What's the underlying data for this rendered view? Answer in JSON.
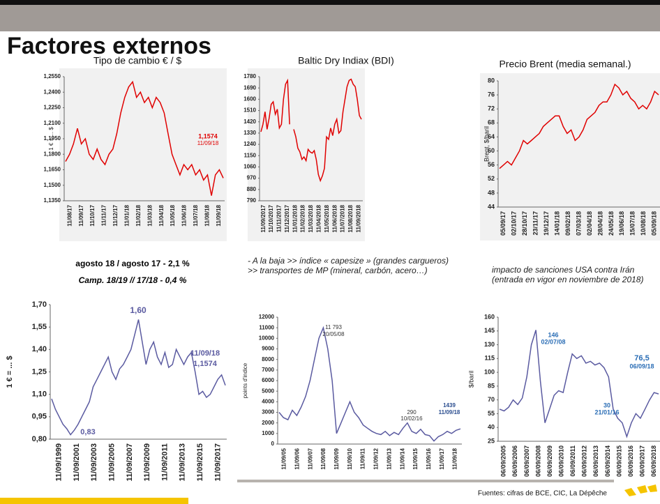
{
  "slide": {
    "title": "Factores externos",
    "note_1a": "agosto 18 / agosto 17  - 2,1 %",
    "note_1b": "Camp. 18/19 // 17/18  - 0,4 %",
    "note_2": "- A la baja >> índice « capesize » (grandes cargueros) >> transportes de MP (mineral, carbón, acero…)",
    "note_3": "impacto de sanciones USA contra Irán (entrada en vigor en noviembre de 2018)",
    "source": "Fuentes: cifras de BCE, CIC, La Dépêche"
  },
  "chart_data": [
    {
      "type": "line",
      "title": "Tipo de cambio € / $",
      "y_label": "1 € = ... $",
      "color": "#e00000",
      "x_labels": [
        "11/08/17",
        "11/09/17",
        "11/10/17",
        "11/11/17",
        "11/12/17",
        "11/01/18",
        "11/02/18",
        "11/03/18",
        "11/04/18",
        "11/05/18",
        "11/06/18",
        "11/07/18",
        "11/08/18",
        "11/09/18"
      ],
      "values": [
        1.173,
        1.18,
        1.19,
        1.205,
        1.19,
        1.195,
        1.18,
        1.175,
        1.185,
        1.175,
        1.17,
        1.18,
        1.185,
        1.2,
        1.22,
        1.235,
        1.245,
        1.25,
        1.235,
        1.24,
        1.23,
        1.235,
        1.225,
        1.235,
        1.23,
        1.22,
        1.2,
        1.18,
        1.17,
        1.16,
        1.17,
        1.165,
        1.17,
        1.16,
        1.165,
        1.155,
        1.16,
        1.14,
        1.16,
        1.165,
        1.157
      ],
      "ylim": [
        1.135,
        1.255
      ],
      "yticks": [
        {
          "value": 1.135,
          "label": "1,1350"
        },
        {
          "value": 1.15,
          "label": "1,1500"
        },
        {
          "value": 1.165,
          "label": "1,1650"
        },
        {
          "value": 1.18,
          "label": "1,1800"
        },
        {
          "value": 1.195,
          "label": "1,1950"
        },
        {
          "value": 1.21,
          "label": "1,2100"
        },
        {
          "value": 1.225,
          "label": "1,2250"
        },
        {
          "value": 1.24,
          "label": "1,2400"
        },
        {
          "value": 1.255,
          "label": "1,2550"
        }
      ],
      "annotations": [
        "1,1574",
        "11/09/18"
      ]
    },
    {
      "type": "line",
      "title": "Baltic Dry Indiax (BDI)",
      "color": "#e00000",
      "x_labels": [
        "11/09/2017",
        "11/10/2017",
        "11/11/2017",
        "11/12/2017",
        "11/01/2018",
        "11/02/2018",
        "11/03/2018",
        "11/04/2018",
        "11/05/2018",
        "11/06/2018",
        "11/07/2018",
        "11/08/2018",
        "11/09/2018"
      ],
      "values": [
        1340,
        1400,
        1500,
        1360,
        1450,
        1560,
        1580,
        1480,
        1520,
        1370,
        1400,
        1600,
        1720,
        1750,
        1400,
        null,
        1360,
        1300,
        1210,
        1180,
        1120,
        1140,
        1110,
        1200,
        1180,
        1170,
        1190,
        1120,
        1000,
        950,
        990,
        1050,
        1300,
        1280,
        1370,
        1310,
        1400,
        1440,
        1330,
        1350,
        1500,
        1600,
        1700,
        1750,
        1760,
        1720,
        1700,
        1600,
        1470,
        1440
      ],
      "ylim": [
        790,
        1780
      ],
      "yticks": [
        790,
        880,
        970,
        1060,
        1150,
        1240,
        1330,
        1420,
        1510,
        1600,
        1690,
        1780
      ],
      "annotations": []
    },
    {
      "type": "line",
      "title": "Precio Brent (media semanal.)",
      "y_label": "Brent, $/baril",
      "color": "#e00000",
      "x_labels": [
        "05/09/17",
        "02/10/17",
        "28/10/17",
        "23/11/17",
        "19/12/17",
        "14/01/18",
        "09/02/18",
        "07/03/18",
        "02/04/18",
        "28/04/18",
        "24/05/18",
        "19/06/18",
        "15/07/18",
        "10/08/18",
        "05/09/18"
      ],
      "values": [
        55,
        56,
        57,
        56,
        58,
        60,
        63,
        62,
        63,
        64,
        65,
        67,
        68,
        69,
        70,
        70,
        67,
        65,
        66,
        63,
        64,
        66,
        69,
        70,
        71,
        73,
        74,
        74,
        76,
        79,
        78,
        76,
        77,
        75,
        74,
        72,
        73,
        72,
        74,
        77,
        76
      ],
      "ylim": [
        44,
        80
      ],
      "yticks": [
        44,
        48,
        52,
        56,
        60,
        64,
        68,
        72,
        76,
        80
      ],
      "annotations": []
    },
    {
      "type": "line",
      "y_label": "1 € = ... $",
      "color": "#5a5aa0",
      "x_labels": [
        "11/09/1999",
        "11/09/2001",
        "11/09/2003",
        "11/09/2005",
        "11/09/2007",
        "11/09/2009",
        "11/09/2011",
        "11/09/2013",
        "11/09/2015",
        "11/09/2017"
      ],
      "values": [
        1.07,
        1.0,
        0.95,
        0.9,
        0.87,
        0.83,
        0.86,
        0.9,
        0.95,
        1.0,
        1.05,
        1.15,
        1.2,
        1.25,
        1.3,
        1.35,
        1.25,
        1.2,
        1.27,
        1.3,
        1.35,
        1.4,
        1.5,
        1.6,
        1.45,
        1.3,
        1.4,
        1.45,
        1.35,
        1.3,
        1.38,
        1.28,
        1.3,
        1.4,
        1.35,
        1.3,
        1.35,
        1.38,
        1.25,
        1.1,
        1.12,
        1.08,
        1.1,
        1.15,
        1.2,
        1.23,
        1.16
      ],
      "ylim": [
        0.8,
        1.7
      ],
      "yticks": [
        {
          "value": 0.8,
          "label": "0,80"
        },
        {
          "value": 0.95,
          "label": "0,95"
        },
        {
          "value": 1.1,
          "label": "1,10"
        },
        {
          "value": 1.25,
          "label": "1,25"
        },
        {
          "value": 1.4,
          "label": "1,40"
        },
        {
          "value": 1.55,
          "label": "1,55"
        },
        {
          "value": 1.7,
          "label": "1,70"
        }
      ],
      "annotations": [
        "1,60",
        "0,83",
        "11/09/18",
        "1,1574"
      ]
    },
    {
      "type": "line",
      "y_label": "points d'indice",
      "color": "#5a5aa0",
      "x_labels": [
        "11/09/05",
        "11/09/06",
        "11/09/07",
        "11/09/08",
        "11/09/09",
        "11/09/10",
        "11/09/11",
        "11/09/12",
        "11/09/13",
        "11/09/14",
        "11/09/15",
        "11/09/16",
        "11/09/17",
        "11/09/18"
      ],
      "values": [
        3000,
        2500,
        2300,
        3200,
        2700,
        3500,
        4500,
        6000,
        8000,
        10000,
        11000,
        9000,
        6000,
        1000,
        2000,
        3000,
        4000,
        3000,
        2500,
        1800,
        1500,
        1200,
        1000,
        900,
        1200,
        800,
        1100,
        900,
        1500,
        2000,
        1200,
        1000,
        1400,
        900,
        800,
        290,
        700,
        900,
        1200,
        1000,
        1300,
        1439
      ],
      "ylim": [
        0,
        12000
      ],
      "yticks": [
        0,
        1000,
        2000,
        3000,
        4000,
        5000,
        6000,
        7000,
        8000,
        9000,
        10000,
        11000,
        12000
      ],
      "annotations": [
        "11 793",
        "20/05/08",
        "290",
        "10/02/16",
        "1439",
        "11/09/18"
      ]
    },
    {
      "type": "line",
      "y_label": "$/baril",
      "color": "#5a5aa0",
      "x_labels": [
        "06/09/2005",
        "06/09/2006",
        "06/09/2007",
        "06/09/2008",
        "06/09/2009",
        "06/09/2010",
        "06/09/2011",
        "06/09/2012",
        "06/09/2013",
        "06/09/2014",
        "06/09/2015",
        "06/09/2016",
        "06/09/2017",
        "06/09/2018"
      ],
      "values": [
        60,
        58,
        62,
        70,
        65,
        72,
        95,
        130,
        146,
        90,
        45,
        60,
        75,
        80,
        78,
        100,
        120,
        115,
        118,
        110,
        112,
        108,
        110,
        105,
        95,
        60,
        50,
        45,
        30,
        45,
        55,
        50,
        60,
        70,
        78,
        76.5
      ],
      "ylim": [
        25,
        160
      ],
      "yticks": [
        25,
        40,
        55,
        70,
        85,
        100,
        115,
        130,
        145,
        160
      ],
      "annotations": [
        "146",
        "02/07/08",
        "30",
        "21/01/16",
        "76,5",
        "06/09/18"
      ]
    }
  ]
}
